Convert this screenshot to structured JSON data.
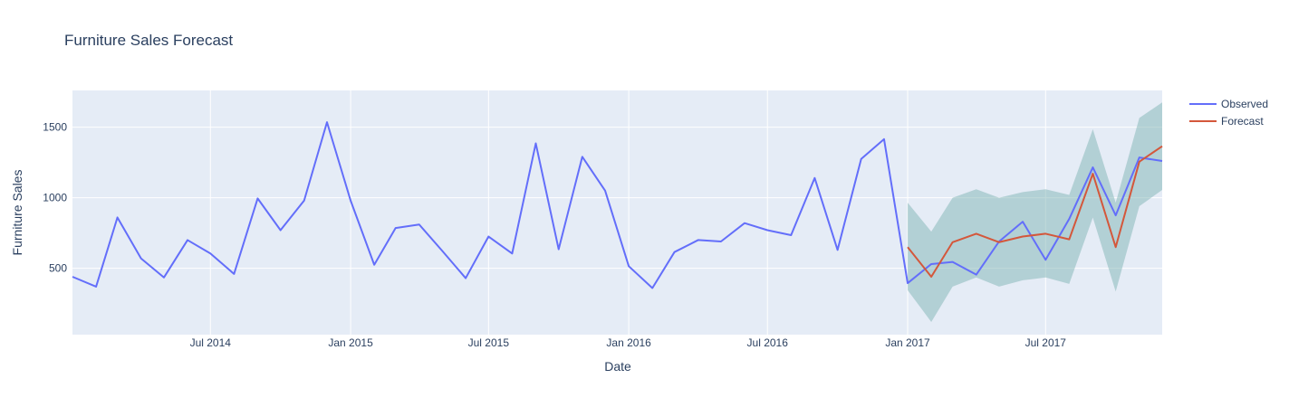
{
  "chart_data": {
    "type": "line",
    "title": "Furniture Sales Forecast",
    "xlabel": "Date",
    "ylabel": "Furniture Sales",
    "xlim": [
      "2014-01-01",
      "2017-12-01"
    ],
    "ylim": [
      30,
      1760
    ],
    "x_ticks": [
      {
        "date": "2014-07-01",
        "label": "Jul 2014"
      },
      {
        "date": "2015-01-01",
        "label": "Jan 2015"
      },
      {
        "date": "2015-07-01",
        "label": "Jul 2015"
      },
      {
        "date": "2016-01-01",
        "label": "Jan 2016"
      },
      {
        "date": "2016-07-01",
        "label": "Jul 2016"
      },
      {
        "date": "2017-01-01",
        "label": "Jan 2017"
      },
      {
        "date": "2017-07-01",
        "label": "Jul 2017"
      }
    ],
    "y_ticks": [
      500,
      1000,
      1500
    ],
    "grid": true,
    "legend_position": "top-right",
    "colors": {
      "observed": "#636efa",
      "forecast": "#d4573b",
      "band": "#7fb3b3",
      "plot_bg": "#e5ecf6",
      "grid": "#ffffff"
    },
    "series": [
      {
        "name": "Observed",
        "x": [
          "2014-01-01",
          "2014-02-01",
          "2014-03-01",
          "2014-04-01",
          "2014-05-01",
          "2014-06-01",
          "2014-07-01",
          "2014-08-01",
          "2014-09-01",
          "2014-10-01",
          "2014-11-01",
          "2014-12-01",
          "2015-01-01",
          "2015-02-01",
          "2015-03-01",
          "2015-04-01",
          "2015-05-01",
          "2015-06-01",
          "2015-07-01",
          "2015-08-01",
          "2015-09-01",
          "2015-10-01",
          "2015-11-01",
          "2015-12-01",
          "2016-01-01",
          "2016-02-01",
          "2016-03-01",
          "2016-04-01",
          "2016-05-01",
          "2016-06-01",
          "2016-07-01",
          "2016-08-01",
          "2016-09-01",
          "2016-10-01",
          "2016-11-01",
          "2016-12-01",
          "2017-01-01",
          "2017-02-01",
          "2017-03-01",
          "2017-04-01",
          "2017-05-01",
          "2017-06-01",
          "2017-07-01",
          "2017-08-01",
          "2017-09-01",
          "2017-10-01",
          "2017-11-01",
          "2017-12-01"
        ],
        "values": [
          440,
          370,
          860,
          570,
          435,
          700,
          605,
          460,
          995,
          770,
          980,
          1535,
          980,
          525,
          785,
          810,
          625,
          430,
          725,
          605,
          1385,
          635,
          1290,
          1050,
          515,
          360,
          615,
          700,
          690,
          820,
          770,
          735,
          1140,
          630,
          1275,
          1415,
          395,
          530,
          545,
          455,
          690,
          830,
          560,
          850,
          1215,
          875,
          1285,
          1260
        ]
      },
      {
        "name": "Forecast",
        "x": [
          "2017-01-01",
          "2017-02-01",
          "2017-03-01",
          "2017-04-01",
          "2017-05-01",
          "2017-06-01",
          "2017-07-01",
          "2017-08-01",
          "2017-09-01",
          "2017-10-01",
          "2017-11-01",
          "2017-12-01"
        ],
        "values": [
          650,
          440,
          685,
          745,
          685,
          725,
          745,
          705,
          1170,
          650,
          1255,
          1365
        ],
        "lower": [
          345,
          120,
          370,
          435,
          370,
          415,
          435,
          390,
          860,
          335,
          940,
          1055
        ],
        "upper": [
          965,
          760,
          1000,
          1060,
          1000,
          1040,
          1060,
          1020,
          1485,
          965,
          1565,
          1675
        ]
      }
    ]
  }
}
